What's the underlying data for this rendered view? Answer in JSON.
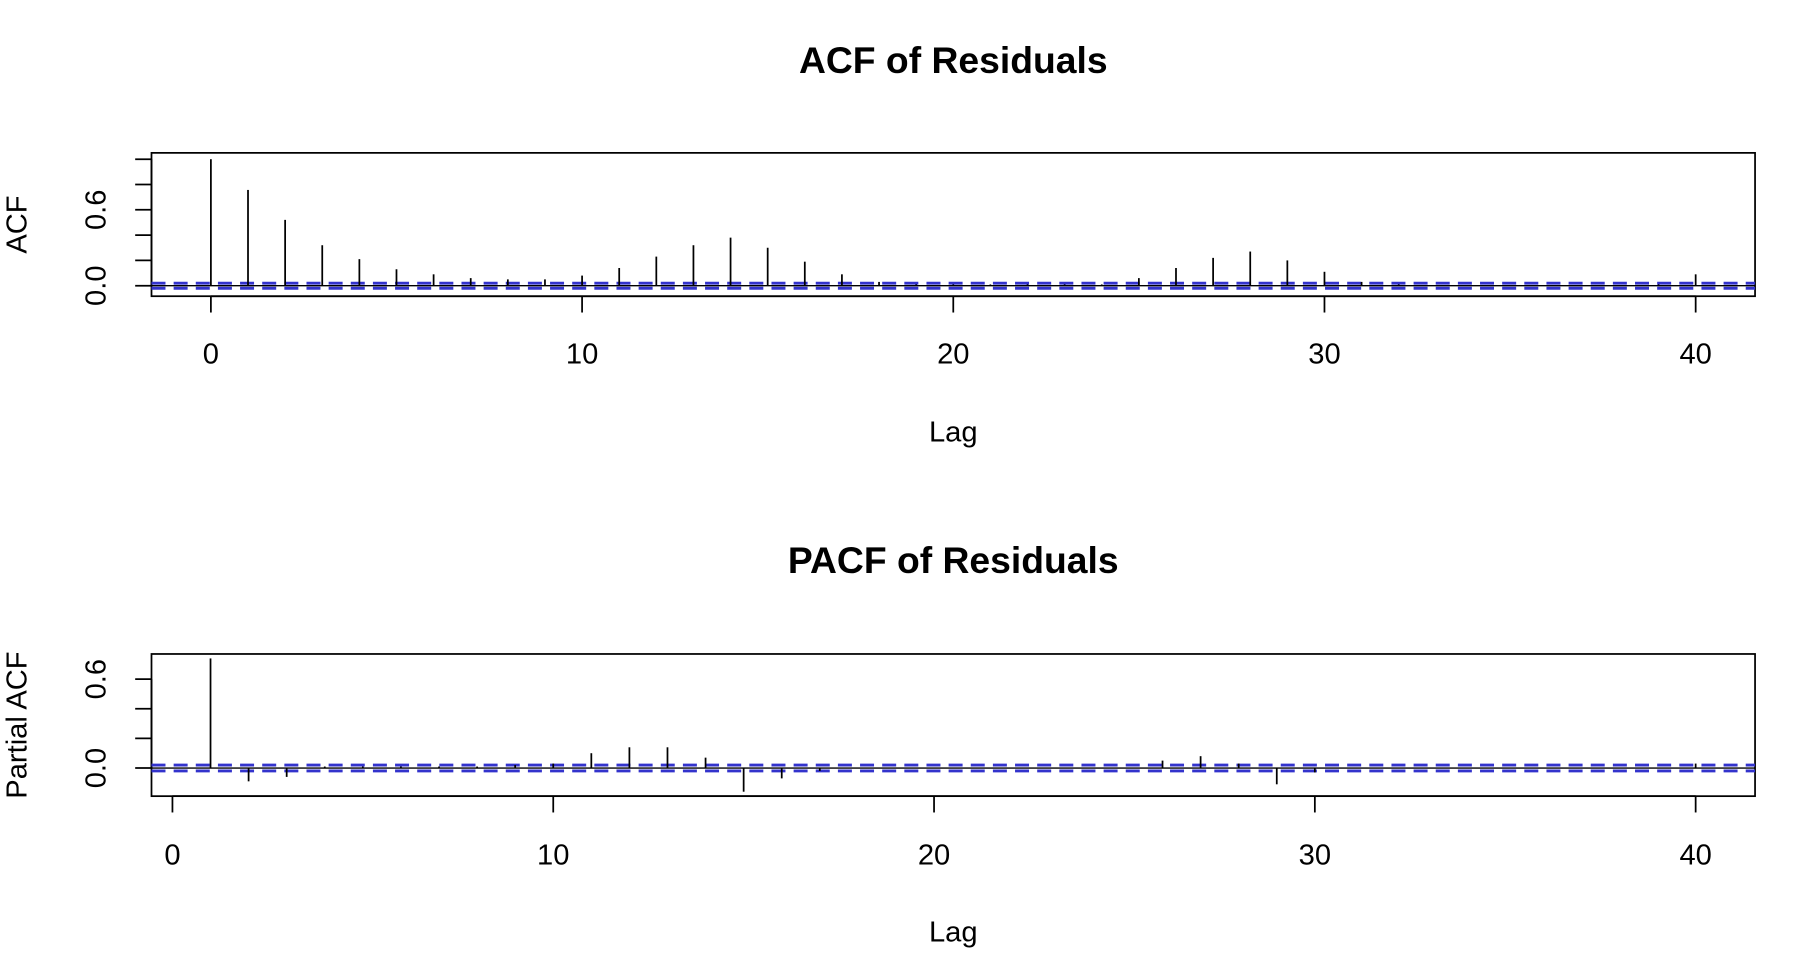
{
  "chart_data": [
    {
      "type": "bar",
      "title": "ACF of Residuals",
      "x_label": "Lag",
      "y_label": "ACF",
      "x": [
        0,
        1,
        2,
        3,
        4,
        5,
        6,
        7,
        8,
        9,
        10,
        11,
        12,
        13,
        14,
        15,
        16,
        17,
        18,
        19,
        20,
        21,
        22,
        23,
        24,
        25,
        26,
        27,
        28,
        29,
        30,
        31,
        32,
        33,
        34,
        35,
        36,
        37,
        38,
        39,
        40
      ],
      "values": [
        1,
        0.757,
        0.52,
        0.32,
        0.21,
        0.13,
        0.09,
        0.06,
        0.05,
        0.05,
        0.08,
        0.14,
        0.23,
        0.32,
        0.38,
        0.3,
        0.19,
        0.09,
        0.03,
        0.01,
        0.01,
        0.01,
        0.01,
        0.01,
        0.01,
        0.06,
        0.14,
        0.22,
        0.27,
        0.2,
        0.11,
        0.03,
        0.01,
        0,
        0,
        0,
        0,
        0,
        0,
        0.01,
        0.09
      ],
      "color": "#000000",
      "ci": [
        -0.02,
        0.02
      ],
      "ci_color": "#3333cc",
      "xlim": [
        -1.6,
        41.6
      ],
      "xticks": [
        0,
        10,
        20,
        30,
        40
      ],
      "ylim": [
        -0.083,
        1.05
      ],
      "yticks": [
        {
          "value": 0,
          "label": "0.0"
        },
        {
          "value": 0.2,
          "label": null
        },
        {
          "value": 0.4,
          "label": null
        },
        {
          "value": 0.6,
          "label": "0.6"
        },
        {
          "value": 0.8,
          "label": null
        },
        {
          "value": 1,
          "label": null
        }
      ]
    },
    {
      "type": "bar",
      "title": "PACF of Residuals",
      "x_label": "Lag",
      "y_label": "Partial ACF",
      "x": [
        1,
        2,
        3,
        4,
        5,
        6,
        7,
        8,
        9,
        10,
        11,
        12,
        13,
        14,
        15,
        16,
        17,
        18,
        19,
        20,
        21,
        22,
        23,
        24,
        25,
        26,
        27,
        28,
        29,
        30,
        31,
        32,
        33,
        34,
        35,
        36,
        37,
        38,
        39,
        40
      ],
      "values": [
        0.74,
        -0.09,
        -0.06,
        0.01,
        0.01,
        0.01,
        0.01,
        0.01,
        0.02,
        0.03,
        0.1,
        0.14,
        0.14,
        0.07,
        -0.16,
        -0.07,
        -0.02,
        0,
        0,
        0,
        0,
        0,
        0,
        0,
        0,
        0.05,
        0.08,
        0.03,
        -0.11,
        -0.03,
        0,
        0,
        0,
        0,
        0,
        0,
        0,
        0,
        0,
        0.03
      ],
      "color": "#000000",
      "ci": [
        -0.02,
        0.02
      ],
      "ci_color": "#3333cc",
      "xlim": [
        -0.55,
        41.56
      ],
      "xticks": [
        0,
        10,
        20,
        30,
        40
      ],
      "ylim": [
        -0.19,
        0.77
      ],
      "yticks": [
        {
          "value": 0,
          "label": "0.0"
        },
        {
          "value": 0.2,
          "label": null
        },
        {
          "value": 0.4,
          "label": null
        },
        {
          "value": 0.6,
          "label": "0.6"
        }
      ]
    }
  ]
}
